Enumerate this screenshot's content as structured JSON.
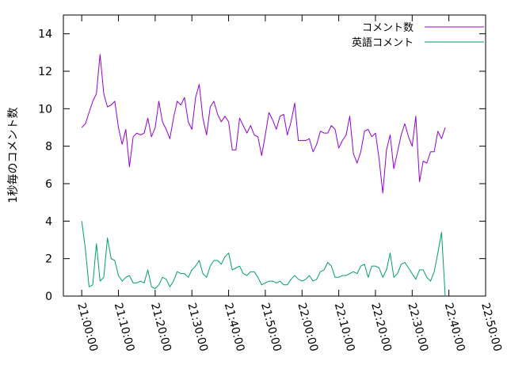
{
  "chart_data": {
    "type": "line",
    "title": "",
    "xlabel": "",
    "ylabel": "1秒毎のコメント数",
    "ylim": [
      0,
      15
    ],
    "yticks": [
      0,
      2,
      4,
      6,
      8,
      10,
      12,
      14
    ],
    "x_ticks": [
      "21:00:00",
      "21:10:00",
      "21:20:00",
      "21:30:00",
      "21:40:00",
      "21:50:00",
      "22:00:00",
      "22:10:00",
      "22:20:00",
      "22:30:00",
      "22:40:00",
      "22:50:00"
    ],
    "x_tick_minutes": [
      0,
      10,
      20,
      30,
      40,
      50,
      60,
      70,
      80,
      90,
      100,
      110
    ],
    "xlim_minutes": [
      -5,
      110
    ],
    "grid": false,
    "legend_position": "top-right",
    "series": [
      {
        "name": "コメント数",
        "color": "#9400d3",
        "points": [
          [
            0,
            9.0
          ],
          [
            1,
            9.2
          ],
          [
            2,
            9.8
          ],
          [
            3,
            10.4
          ],
          [
            4,
            10.8
          ],
          [
            5,
            12.9
          ],
          [
            6,
            10.8
          ],
          [
            7,
            10.1
          ],
          [
            8,
            10.2
          ],
          [
            9,
            10.4
          ],
          [
            10,
            9.0
          ],
          [
            11,
            8.1
          ],
          [
            12,
            8.9
          ],
          [
            13,
            6.9
          ],
          [
            14,
            8.5
          ],
          [
            15,
            8.7
          ],
          [
            16,
            8.6
          ],
          [
            17,
            8.7
          ],
          [
            18,
            9.5
          ],
          [
            19,
            8.5
          ],
          [
            20,
            9.0
          ],
          [
            21,
            10.4
          ],
          [
            22,
            9.3
          ],
          [
            23,
            8.9
          ],
          [
            24,
            8.4
          ],
          [
            25,
            9.5
          ],
          [
            26,
            10.4
          ],
          [
            27,
            10.2
          ],
          [
            28,
            10.6
          ],
          [
            29,
            9.3
          ],
          [
            30,
            8.9
          ],
          [
            31,
            10.6
          ],
          [
            32,
            11.3
          ],
          [
            33,
            9.5
          ],
          [
            34,
            8.6
          ],
          [
            35,
            10.1
          ],
          [
            36,
            10.4
          ],
          [
            37,
            9.7
          ],
          [
            38,
            9.3
          ],
          [
            39,
            9.6
          ],
          [
            40,
            9.3
          ],
          [
            41,
            7.8
          ],
          [
            42,
            7.8
          ],
          [
            43,
            9.5
          ],
          [
            44,
            9.1
          ],
          [
            45,
            8.7
          ],
          [
            46,
            9.1
          ],
          [
            47,
            8.6
          ],
          [
            48,
            8.5
          ],
          [
            49,
            7.5
          ],
          [
            50,
            8.6
          ],
          [
            51,
            9.8
          ],
          [
            52,
            9.4
          ],
          [
            53,
            8.9
          ],
          [
            54,
            9.6
          ],
          [
            55,
            9.7
          ],
          [
            56,
            8.6
          ],
          [
            57,
            9.3
          ],
          [
            58,
            10.3
          ],
          [
            59,
            8.3
          ],
          [
            60,
            8.3
          ],
          [
            61,
            8.3
          ],
          [
            62,
            8.4
          ],
          [
            63,
            7.7
          ],
          [
            64,
            8.1
          ],
          [
            65,
            8.8
          ],
          [
            66,
            8.7
          ],
          [
            67,
            8.7
          ],
          [
            68,
            9.1
          ],
          [
            69,
            8.9
          ],
          [
            70,
            7.9
          ],
          [
            71,
            8.3
          ],
          [
            72,
            8.6
          ],
          [
            73,
            9.6
          ],
          [
            74,
            7.6
          ],
          [
            75,
            7.1
          ],
          [
            76,
            7.7
          ],
          [
            77,
            8.8
          ],
          [
            78,
            8.9
          ],
          [
            79,
            8.5
          ],
          [
            80,
            8.7
          ],
          [
            81,
            7.3
          ],
          [
            82,
            5.5
          ],
          [
            83,
            7.8
          ],
          [
            84,
            8.6
          ],
          [
            85,
            6.8
          ],
          [
            86,
            7.7
          ],
          [
            87,
            8.6
          ],
          [
            88,
            9.2
          ],
          [
            89,
            8.5
          ],
          [
            90,
            8.0
          ],
          [
            91,
            9.6
          ],
          [
            92,
            6.1
          ],
          [
            93,
            7.2
          ],
          [
            94,
            7.1
          ],
          [
            95,
            7.7
          ],
          [
            96,
            7.7
          ],
          [
            97,
            8.8
          ],
          [
            98,
            8.4
          ],
          [
            99,
            9.0
          ]
        ]
      },
      {
        "name": "英語コメント",
        "color": "#009e73",
        "points": [
          [
            0,
            4.0
          ],
          [
            1,
            2.5
          ],
          [
            2,
            0.5
          ],
          [
            3,
            0.6
          ],
          [
            4,
            2.8
          ],
          [
            5,
            0.8
          ],
          [
            6,
            1.0
          ],
          [
            7,
            3.1
          ],
          [
            8,
            2.0
          ],
          [
            9,
            1.9
          ],
          [
            10,
            1.1
          ],
          [
            11,
            0.8
          ],
          [
            12,
            1.0
          ],
          [
            13,
            1.1
          ],
          [
            14,
            0.7
          ],
          [
            15,
            0.7
          ],
          [
            16,
            0.8
          ],
          [
            17,
            0.7
          ],
          [
            18,
            1.4
          ],
          [
            19,
            0.5
          ],
          [
            20,
            0.4
          ],
          [
            21,
            0.6
          ],
          [
            22,
            1.0
          ],
          [
            23,
            0.9
          ],
          [
            24,
            0.5
          ],
          [
            25,
            0.8
          ],
          [
            26,
            1.3
          ],
          [
            27,
            1.2
          ],
          [
            28,
            1.2
          ],
          [
            29,
            1.0
          ],
          [
            30,
            1.4
          ],
          [
            31,
            1.6
          ],
          [
            32,
            1.9
          ],
          [
            33,
            1.2
          ],
          [
            34,
            1.0
          ],
          [
            35,
            1.6
          ],
          [
            36,
            1.9
          ],
          [
            37,
            1.9
          ],
          [
            38,
            1.7
          ],
          [
            39,
            2.1
          ],
          [
            40,
            2.3
          ],
          [
            41,
            1.4
          ],
          [
            42,
            1.5
          ],
          [
            43,
            1.6
          ],
          [
            44,
            1.2
          ],
          [
            45,
            1.1
          ],
          [
            46,
            1.3
          ],
          [
            47,
            1.3
          ],
          [
            48,
            1.0
          ],
          [
            49,
            0.6
          ],
          [
            50,
            0.7
          ],
          [
            51,
            0.8
          ],
          [
            52,
            0.8
          ],
          [
            53,
            0.7
          ],
          [
            54,
            0.8
          ],
          [
            55,
            0.6
          ],
          [
            56,
            0.6
          ],
          [
            57,
            0.9
          ],
          [
            58,
            1.1
          ],
          [
            59,
            0.9
          ],
          [
            60,
            0.8
          ],
          [
            61,
            0.9
          ],
          [
            62,
            1.1
          ],
          [
            63,
            0.8
          ],
          [
            64,
            0.9
          ],
          [
            65,
            1.3
          ],
          [
            66,
            1.4
          ],
          [
            67,
            1.8
          ],
          [
            68,
            1.6
          ],
          [
            69,
            1.0
          ],
          [
            70,
            1.0
          ],
          [
            71,
            1.1
          ],
          [
            72,
            1.1
          ],
          [
            73,
            1.2
          ],
          [
            74,
            1.3
          ],
          [
            75,
            1.2
          ],
          [
            76,
            1.6
          ],
          [
            77,
            1.7
          ],
          [
            78,
            1.0
          ],
          [
            79,
            1.6
          ],
          [
            80,
            1.6
          ],
          [
            81,
            1.5
          ],
          [
            82,
            1.0
          ],
          [
            83,
            1.4
          ],
          [
            84,
            2.3
          ],
          [
            85,
            1.0
          ],
          [
            86,
            1.2
          ],
          [
            87,
            1.7
          ],
          [
            88,
            1.8
          ],
          [
            89,
            1.5
          ],
          [
            90,
            1.2
          ],
          [
            91,
            0.9
          ],
          [
            92,
            1.4
          ],
          [
            93,
            1.4
          ],
          [
            94,
            1.0
          ],
          [
            95,
            0.8
          ],
          [
            96,
            1.3
          ],
          [
            97,
            2.3
          ],
          [
            98,
            3.4
          ],
          [
            99,
            0.0
          ]
        ]
      }
    ]
  }
}
